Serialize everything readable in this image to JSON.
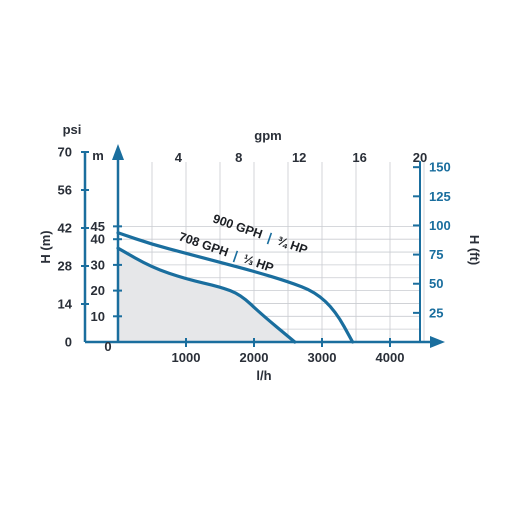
{
  "chart_data": {
    "type": "line",
    "title": "",
    "xlabel": "l/h",
    "ylabel": "H (m)",
    "x": {
      "label": "l/h",
      "min": 0,
      "max": 4500,
      "ticks": [
        1000,
        2000,
        3000,
        4000
      ],
      "grid_step": 500
    },
    "x_top": {
      "label": "gpm",
      "ticks": [
        4,
        8,
        12,
        16,
        20
      ]
    },
    "y": {
      "label": "H (m)",
      "unit": "m",
      "min": 0,
      "max": 45,
      "ticks": [
        10,
        20,
        30,
        40,
        45
      ],
      "grid_step": 5
    },
    "y_psi": {
      "label": "psi",
      "ticks": [
        0,
        14,
        28,
        42,
        56,
        70
      ]
    },
    "y_right": {
      "label": "H (ft)",
      "ticks": [
        25,
        50,
        75,
        100,
        125,
        150
      ]
    },
    "origin_label": "0",
    "grid": true,
    "series": [
      {
        "name": "900 GPH",
        "name_sep": "|",
        "power": "¾ HP",
        "color": "#1a6e9e",
        "points": [
          [
            0,
            42.5
          ],
          [
            500,
            38
          ],
          [
            1000,
            34.5
          ],
          [
            1500,
            31
          ],
          [
            2000,
            27.5
          ],
          [
            2500,
            23.5
          ],
          [
            2900,
            19.5
          ],
          [
            3200,
            12
          ],
          [
            3450,
            0
          ]
        ]
      },
      {
        "name": "708 GPH",
        "name_sep": "|",
        "power": "⅓ HP",
        "color": "#1a6e9e",
        "fill": "#e6e7e9",
        "points": [
          [
            0,
            36.5
          ],
          [
            500,
            29
          ],
          [
            1000,
            24.5
          ],
          [
            1500,
            21.5
          ],
          [
            1800,
            18.5
          ],
          [
            2100,
            11
          ],
          [
            2600,
            0
          ]
        ]
      }
    ]
  }
}
